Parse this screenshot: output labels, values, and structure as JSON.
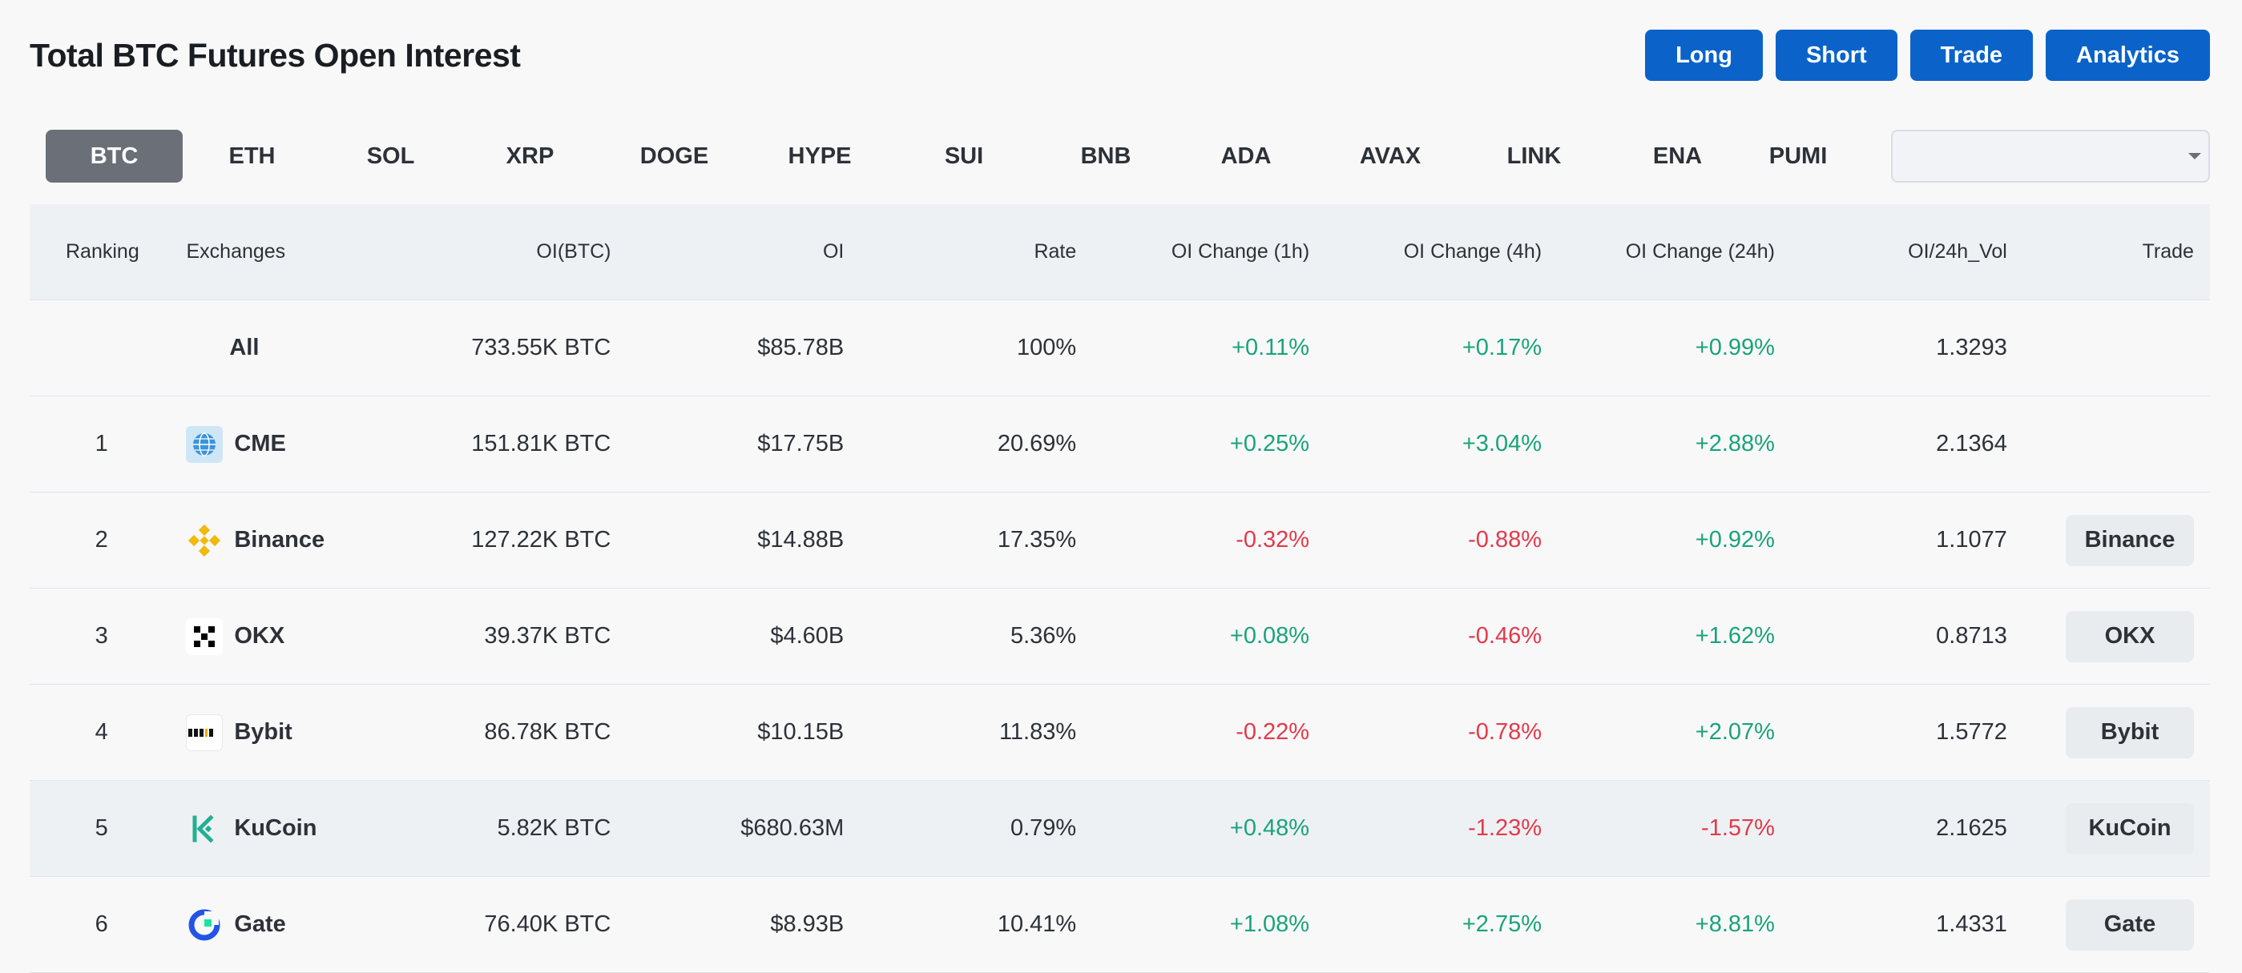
{
  "header": {
    "title": "Total BTC Futures Open Interest",
    "actions": [
      "Long",
      "Short",
      "Trade",
      "Analytics"
    ]
  },
  "tabs": [
    "BTC",
    "ETH",
    "SOL",
    "XRP",
    "DOGE",
    "HYPE",
    "SUI",
    "BNB",
    "ADA",
    "AVAX",
    "LINK",
    "ENA",
    "PUMI"
  ],
  "active_tab": "BTC",
  "search": {
    "value": "",
    "icon": "search-icon"
  },
  "table": {
    "columns": [
      "Ranking",
      "Exchanges",
      "OI(BTC)",
      "OI",
      "Rate",
      "OI Change (1h)",
      "OI Change (4h)",
      "OI Change (24h)",
      "OI/24h_Vol",
      "Trade"
    ],
    "all_row": {
      "label": "All",
      "oi_btc": "733.55K BTC",
      "oi": "$85.78B",
      "rate": "100%",
      "ch1h": "+0.11%",
      "ch4h": "+0.17%",
      "ch24h": "+0.99%",
      "vol": "1.3293"
    },
    "rows": [
      {
        "rank": "1",
        "name": "CME",
        "oi_btc": "151.81K BTC",
        "oi": "$17.75B",
        "rate": "20.69%",
        "ch1h": "+0.25%",
        "ch4h": "+3.04%",
        "ch24h": "+2.88%",
        "vol": "2.1364",
        "trade": ""
      },
      {
        "rank": "2",
        "name": "Binance",
        "oi_btc": "127.22K BTC",
        "oi": "$14.88B",
        "rate": "17.35%",
        "ch1h": "-0.32%",
        "ch4h": "-0.88%",
        "ch24h": "+0.92%",
        "vol": "1.1077",
        "trade": "Binance"
      },
      {
        "rank": "3",
        "name": "OKX",
        "oi_btc": "39.37K BTC",
        "oi": "$4.60B",
        "rate": "5.36%",
        "ch1h": "+0.08%",
        "ch4h": "-0.46%",
        "ch24h": "+1.62%",
        "vol": "0.8713",
        "trade": "OKX"
      },
      {
        "rank": "4",
        "name": "Bybit",
        "oi_btc": "86.78K BTC",
        "oi": "$10.15B",
        "rate": "11.83%",
        "ch1h": "-0.22%",
        "ch4h": "-0.78%",
        "ch24h": "+2.07%",
        "vol": "1.5772",
        "trade": "Bybit"
      },
      {
        "rank": "5",
        "name": "KuCoin",
        "oi_btc": "5.82K BTC",
        "oi": "$680.63M",
        "rate": "0.79%",
        "ch1h": "+0.48%",
        "ch4h": "-1.23%",
        "ch24h": "-1.57%",
        "vol": "2.1625",
        "trade": "KuCoin"
      },
      {
        "rank": "6",
        "name": "Gate",
        "oi_btc": "76.40K BTC",
        "oi": "$8.93B",
        "rate": "10.41%",
        "ch1h": "+1.08%",
        "ch4h": "+2.75%",
        "ch24h": "+8.81%",
        "vol": "1.4331",
        "trade": "Gate"
      }
    ]
  },
  "colors": {
    "positive": "#1aa37a",
    "negative": "#e23a4a",
    "primary": "#0b63c9",
    "active_tab": "#6b7078"
  }
}
